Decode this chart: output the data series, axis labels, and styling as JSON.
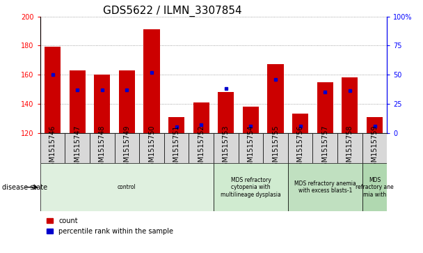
{
  "title": "GDS5622 / ILMN_3307854",
  "samples": [
    "GSM1515746",
    "GSM1515747",
    "GSM1515748",
    "GSM1515749",
    "GSM1515750",
    "GSM1515751",
    "GSM1515752",
    "GSM1515753",
    "GSM1515754",
    "GSM1515755",
    "GSM1515756",
    "GSM1515757",
    "GSM1515758",
    "GSM1515759"
  ],
  "counts": [
    179,
    163,
    160,
    163,
    191,
    131,
    141,
    148,
    138,
    167,
    133,
    155,
    158,
    131
  ],
  "percentile_ranks": [
    50,
    37,
    37,
    37,
    52,
    5,
    7,
    38,
    6,
    46,
    6,
    35,
    36,
    6
  ],
  "ymin": 120,
  "ymax": 200,
  "yticks_left": [
    120,
    140,
    160,
    180,
    200
  ],
  "yticks_right": [
    0,
    25,
    50,
    75,
    100
  ],
  "bar_color": "#cc0000",
  "percentile_color": "#0000cc",
  "disease_groups": [
    {
      "label": "control",
      "start": 0,
      "end": 7,
      "color": "#dff0df"
    },
    {
      "label": "MDS refractory\ncytopenia with\nmultilineage dysplasia",
      "start": 7,
      "end": 10,
      "color": "#d0ebd0"
    },
    {
      "label": "MDS refractory anemia\nwith excess blasts-1",
      "start": 10,
      "end": 13,
      "color": "#c0e0c0"
    },
    {
      "label": "MDS\nrefractory ane\nmia with",
      "start": 13,
      "end": 14,
      "color": "#b0d8b0"
    }
  ],
  "disease_state_label": "disease state",
  "legend_count_label": "count",
  "legend_percentile_label": "percentile rank within the sample",
  "grid_color": "#888888",
  "bg_color": "#ffffff",
  "cell_bg_color": "#d8d8d8",
  "title_fontsize": 11,
  "tick_fontsize": 7,
  "label_fontsize": 7.5
}
